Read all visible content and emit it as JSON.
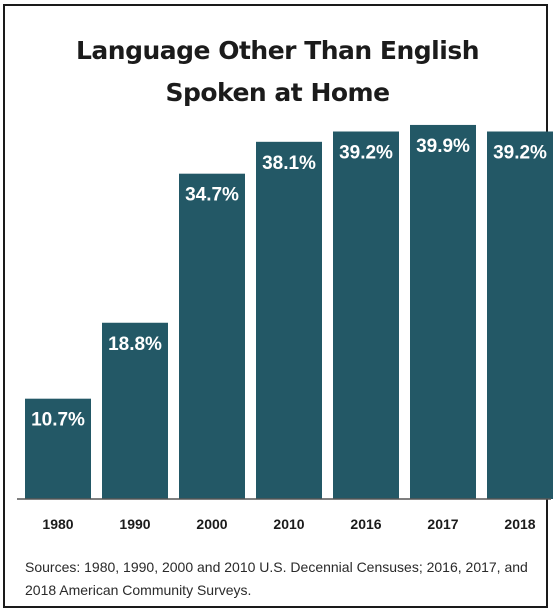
{
  "chart_data": {
    "type": "bar",
    "title_line1": "Language Other Than English",
    "title_line2": "Spoken at Home",
    "categories": [
      "1980",
      "1990",
      "2000",
      "2010",
      "2016",
      "2017",
      "2018"
    ],
    "values": [
      10.7,
      18.8,
      34.7,
      38.1,
      39.2,
      39.9,
      39.2
    ],
    "labels": [
      "10.7%",
      "18.8%",
      "34.7%",
      "38.1%",
      "39.2%",
      "39.9%",
      "39.2%"
    ],
    "xlabel": "",
    "ylabel": "",
    "unit": "%",
    "ylim": [
      0,
      40
    ],
    "grid": false,
    "bar_color": "#235866",
    "label_color": "#ffffff"
  },
  "source_note": "Sources:  1980, 1990, 2000 and 2010 U.S. Decennial Censuses; 2016, 2017, and 2018 American Community  Surveys."
}
